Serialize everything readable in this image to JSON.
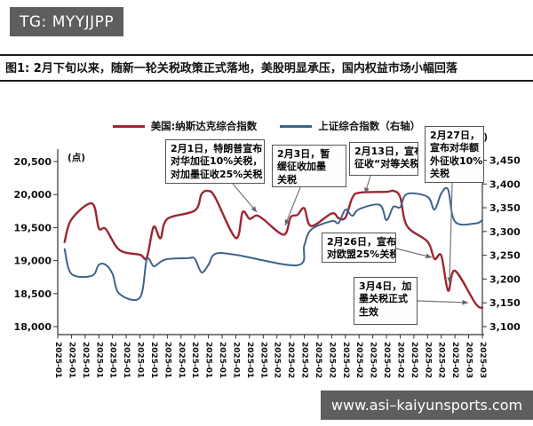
{
  "watermark_top": "TG: MYYJJPP",
  "watermark_bottom": "www.asi–kaiyunsports.com",
  "figure_title": "图1: 2月下旬以来，随新一轮关税政策正式落地，美股明显承压，国内权益市场小幅回落",
  "chart_data": {
    "type": "line",
    "legend": [
      {
        "name": "美国:纳斯达克综合指数",
        "color": "#9e2633",
        "axis": "left"
      },
      {
        "name": "上证综合指数（右轴）",
        "color": "#3c648c",
        "axis": "right"
      }
    ],
    "left_axis": {
      "unit": "(点)",
      "min": 18000,
      "max": 20500,
      "tick_step": 500,
      "ticks": [
        "20,500",
        "20,000",
        "19,500",
        "19,000",
        "18,500",
        "18,000"
      ]
    },
    "right_axis": {
      "unit": "(点)",
      "min": 3100,
      "max": 3450,
      "tick_step": 50,
      "ticks": [
        "3,450",
        "3,400",
        "3,350",
        "3,300",
        "3,250",
        "3,200",
        "3,150",
        "3,100"
      ]
    },
    "x_axis": {
      "labels": [
        "2025-01-01",
        "2025-01-03",
        "2025-01-05",
        "2025-01-07",
        "2025-01-09",
        "2025-01-11",
        "2025-01-13",
        "2025-01-15",
        "2025-01-17",
        "2025-01-19",
        "2025-01-21",
        "2025-01-23",
        "2025-01-25",
        "2025-01-27",
        "2025-01-29",
        "2025-01-31",
        "2025-02-02",
        "2025-02-04",
        "2025-02-06",
        "2025-02-08",
        "2025-02-10",
        "2025-02-12",
        "2025-02-14",
        "2025-02-16",
        "2025-02-18",
        "2025-02-20",
        "2025-02-22",
        "2025-02-24",
        "2025-02-26",
        "2025-02-28",
        "2025-03-02",
        "2025-03-04"
      ]
    },
    "series": [
      {
        "name": "美国:纳斯达克综合指数",
        "axis": "left",
        "color": "#9e2633",
        "points": [
          [
            "2025-01-02",
            19281
          ],
          [
            "2025-01-03",
            19622
          ],
          [
            "2025-01-06",
            19865
          ],
          [
            "2025-01-07",
            19490
          ],
          [
            "2025-01-08",
            19479
          ],
          [
            "2025-01-10",
            19162
          ],
          [
            "2025-01-13",
            19088
          ],
          [
            "2025-01-14",
            19044
          ],
          [
            "2025-01-15",
            19511
          ],
          [
            "2025-01-16",
            19338
          ],
          [
            "2025-01-17",
            19630
          ],
          [
            "2025-01-21",
            19757
          ],
          [
            "2025-01-22",
            20009
          ],
          [
            "2025-01-23",
            20054
          ],
          [
            "2025-01-24",
            19954
          ],
          [
            "2025-01-27",
            19342
          ],
          [
            "2025-01-28",
            19734
          ],
          [
            "2025-01-29",
            19632
          ],
          [
            "2025-01-30",
            19682
          ],
          [
            "2025-01-31",
            19627
          ],
          [
            "2025-02-03",
            19392
          ],
          [
            "2025-02-04",
            19654
          ],
          [
            "2025-02-05",
            19692
          ],
          [
            "2025-02-06",
            19792
          ],
          [
            "2025-02-07",
            19523
          ],
          [
            "2025-02-10",
            19714
          ],
          [
            "2025-02-11",
            19644
          ],
          [
            "2025-02-12",
            19650
          ],
          [
            "2025-02-13",
            19946
          ],
          [
            "2025-02-14",
            20027
          ],
          [
            "2025-02-18",
            20041
          ],
          [
            "2025-02-19",
            20056
          ],
          [
            "2025-02-20",
            19962
          ],
          [
            "2025-02-21",
            19524
          ],
          [
            "2025-02-24",
            19287
          ],
          [
            "2025-02-25",
            19026
          ],
          [
            "2025-02-26",
            19075
          ],
          [
            "2025-02-27",
            18544
          ],
          [
            "2025-02-28",
            18847
          ],
          [
            "2025-03-03",
            18350
          ],
          [
            "2025-03-04",
            18285
          ]
        ]
      },
      {
        "name": "上证综合指数（右轴）",
        "axis": "right",
        "color": "#3c648c",
        "points": [
          [
            "2025-01-02",
            3263
          ],
          [
            "2025-01-03",
            3211
          ],
          [
            "2025-01-06",
            3207
          ],
          [
            "2025-01-07",
            3230
          ],
          [
            "2025-01-08",
            3230
          ],
          [
            "2025-01-09",
            3211
          ],
          [
            "2025-01-10",
            3169
          ],
          [
            "2025-01-13",
            3161
          ],
          [
            "2025-01-14",
            3241
          ],
          [
            "2025-01-15",
            3227
          ],
          [
            "2025-01-16",
            3236
          ],
          [
            "2025-01-17",
            3242
          ],
          [
            "2025-01-20",
            3244
          ],
          [
            "2025-01-21",
            3243
          ],
          [
            "2025-01-22",
            3214
          ],
          [
            "2025-01-23",
            3230
          ],
          [
            "2025-01-24",
            3253
          ],
          [
            "2025-01-27",
            3251
          ],
          [
            "2025-02-05",
            3229
          ],
          [
            "2025-02-06",
            3271
          ],
          [
            "2025-02-07",
            3304
          ],
          [
            "2025-02-10",
            3322
          ],
          [
            "2025-02-11",
            3318
          ],
          [
            "2025-02-12",
            3346
          ],
          [
            "2025-02-13",
            3333
          ],
          [
            "2025-02-14",
            3347
          ],
          [
            "2025-02-17",
            3356
          ],
          [
            "2025-02-18",
            3324
          ],
          [
            "2025-02-19",
            3352
          ],
          [
            "2025-02-20",
            3351
          ],
          [
            "2025-02-21",
            3379
          ],
          [
            "2025-02-24",
            3373
          ],
          [
            "2025-02-25",
            3346
          ],
          [
            "2025-02-26",
            3380
          ],
          [
            "2025-02-27",
            3388
          ],
          [
            "2025-02-28",
            3321
          ],
          [
            "2025-03-03",
            3317
          ],
          [
            "2025-03-04",
            3324
          ]
        ]
      }
    ],
    "annotations": [
      {
        "text": "2月1日，特朗普宣布对华加征10%关税，对加墨征收25%关税",
        "lines": [
          "2月1日，特朗普宣布",
          "对华加征10%关税，",
          "对加墨征收25%关税"
        ]
      },
      {
        "text": "2月3日，暂缓征收加墨关税",
        "lines": [
          "2月3日，暂",
          "缓征收加墨",
          "关税"
        ]
      },
      {
        "text": "2月13日，宣布征收“对等关税”",
        "lines": [
          "2月13日，宣布",
          "征收“对等关税”"
        ]
      },
      {
        "text": "2月27日，宣布对华额外征收10%关税",
        "lines": [
          "2月27日，",
          "宣布对华额",
          "外征收10%",
          "关税"
        ]
      },
      {
        "text": "2月26日，宣布对欧盟25%关税",
        "lines": [
          "2月26日，宣布",
          "对欧盟25%关税"
        ]
      },
      {
        "text": "3月4日，加墨关税正式生效",
        "lines": [
          "3月4日，加",
          "墨关税正式",
          "生效"
        ]
      }
    ]
  }
}
